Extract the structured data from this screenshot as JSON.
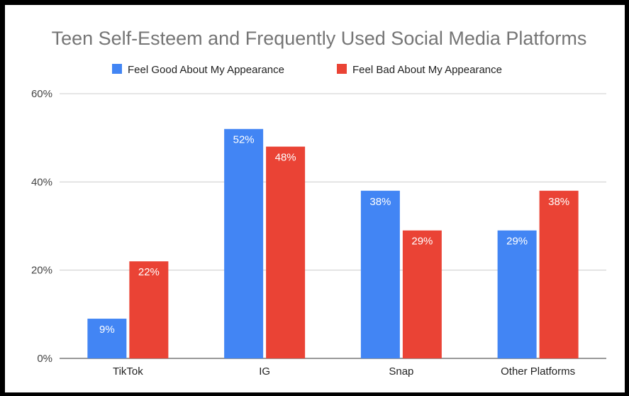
{
  "chart_data": {
    "type": "bar",
    "title": "Teen Self-Esteem and Frequently Used Social Media Platforms",
    "categories": [
      "TikTok",
      "IG",
      "Snap",
      "Other Platforms"
    ],
    "series": [
      {
        "name": "Feel Good About My Appearance",
        "color": "#4285f4",
        "values": [
          9,
          52,
          38,
          29
        ],
        "labels": [
          "9%",
          "52%",
          "38%",
          "29%"
        ]
      },
      {
        "name": "Feel Bad About My Appearance",
        "color": "#ea4335",
        "values": [
          22,
          48,
          29,
          38
        ],
        "labels": [
          "22%",
          "48%",
          "29%",
          "38%"
        ]
      }
    ],
    "y_ticks": [
      0,
      20,
      40,
      60
    ],
    "y_tick_labels": [
      "0%",
      "20%",
      "40%",
      "60%"
    ],
    "ylim": [
      0,
      60
    ],
    "grid": true,
    "legend_position": "top"
  }
}
